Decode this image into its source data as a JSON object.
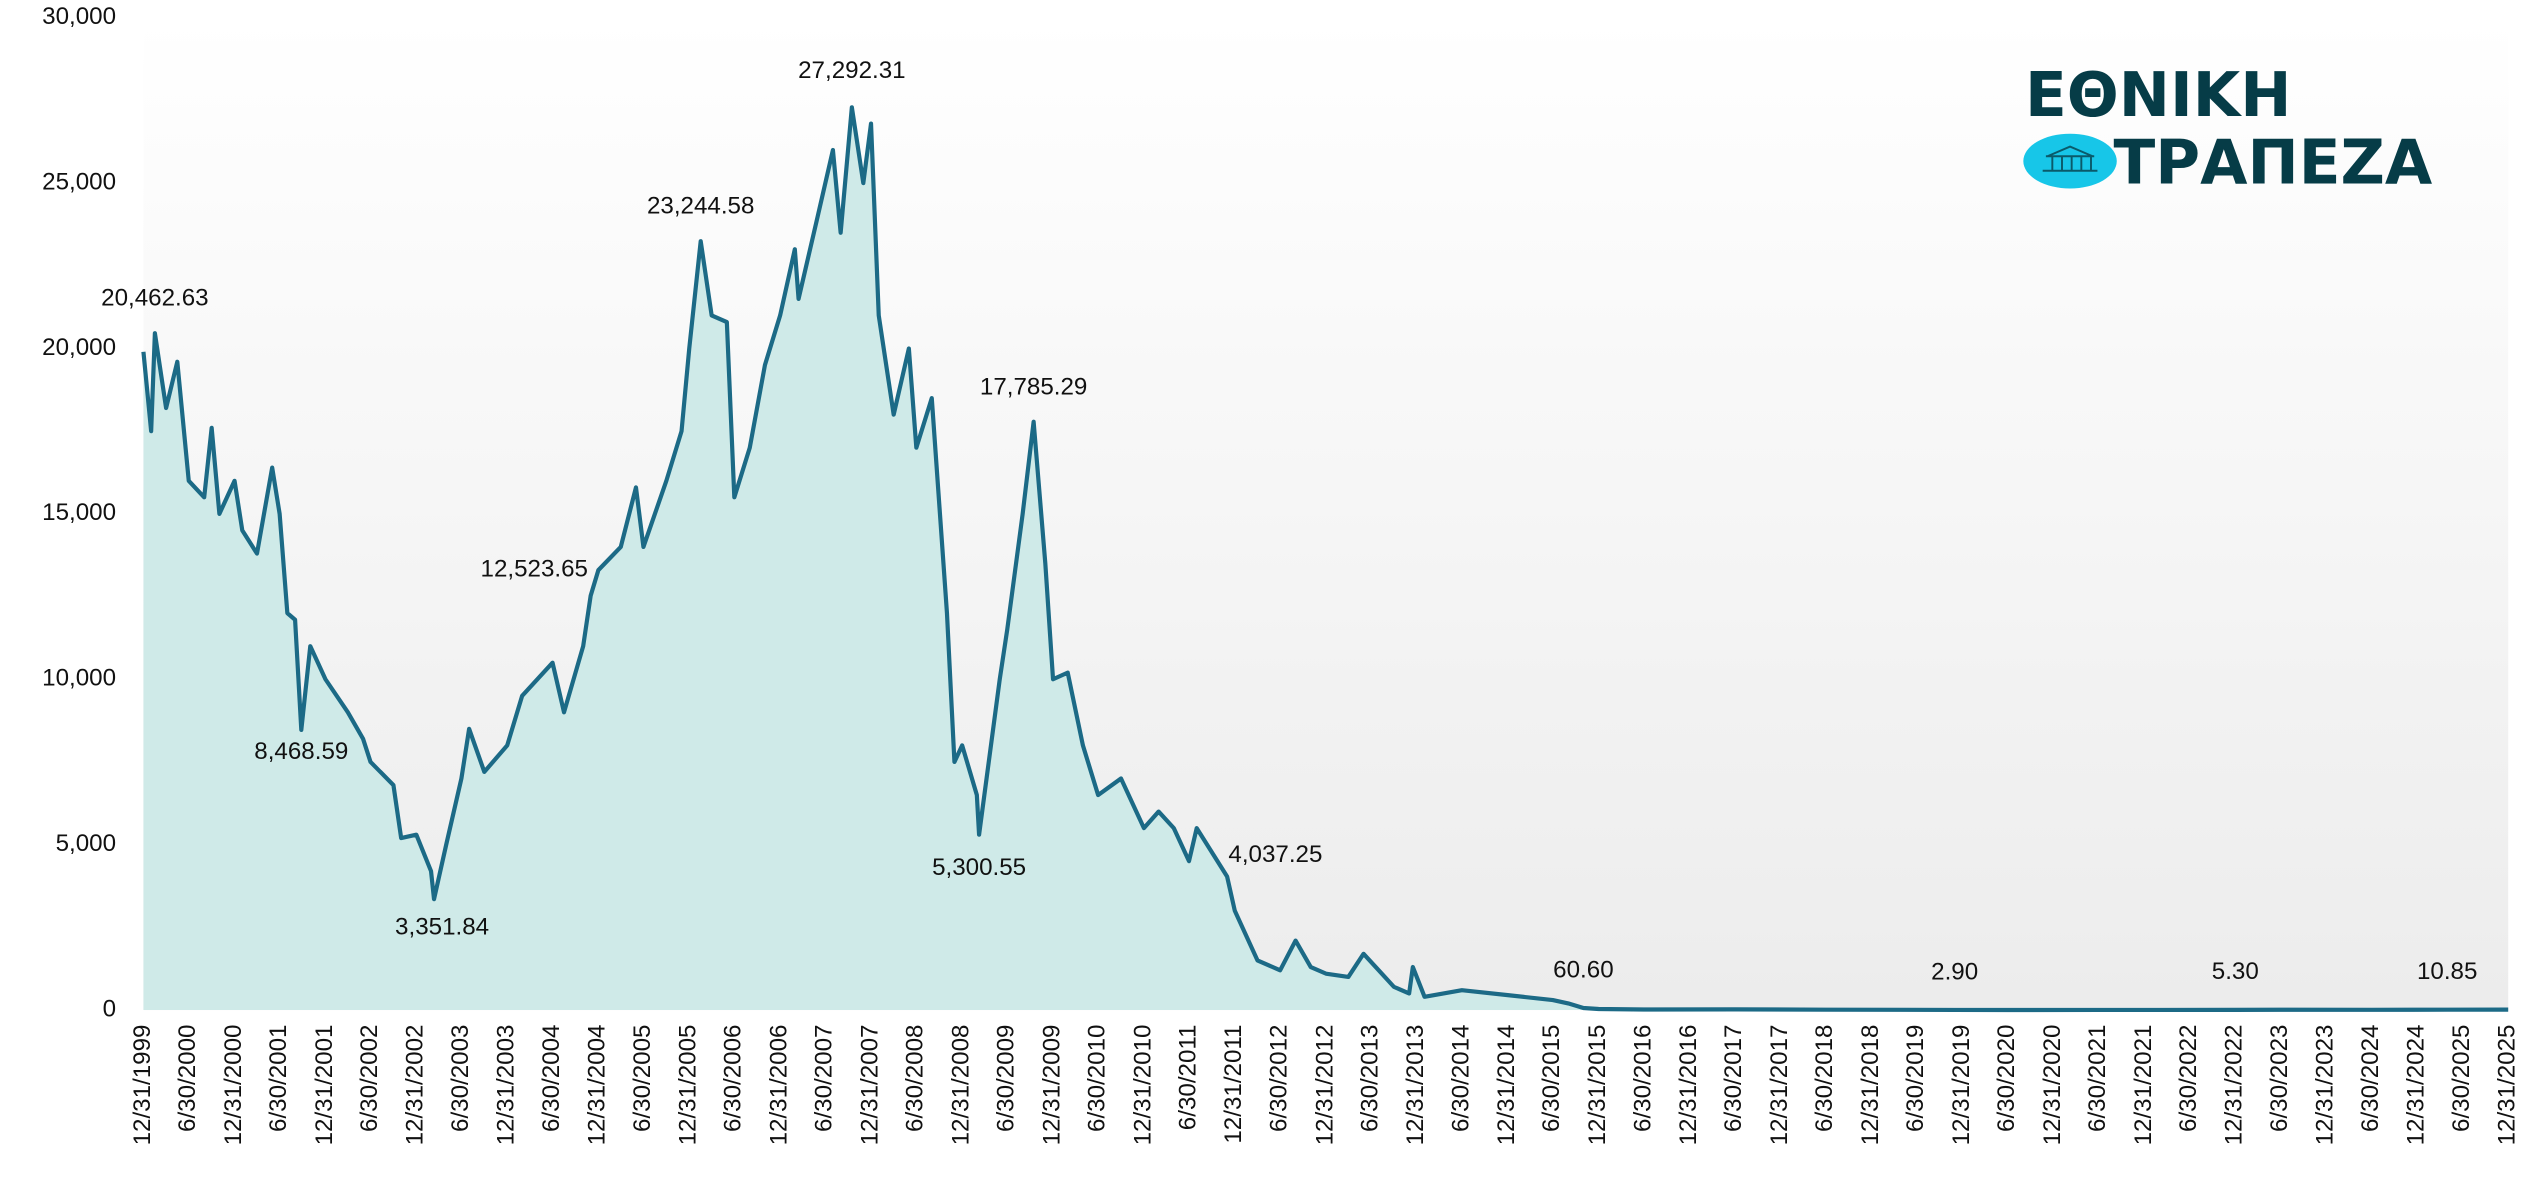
{
  "chart_data": {
    "type": "line",
    "area": true,
    "xlim": [
      "12/31/1999",
      "12/31/2025"
    ],
    "ylim": [
      0,
      30000
    ],
    "yticks": [
      0,
      {
        "value": 5000,
        "label": "5,000"
      },
      {
        "value": 10000,
        "label": "10,000"
      },
      {
        "value": 15000,
        "label": "15,000"
      },
      {
        "value": 20000,
        "label": "20,000"
      },
      {
        "value": 25000,
        "label": "25,000"
      },
      {
        "value": 30000,
        "label": "30,000"
      }
    ],
    "xticks": [
      "12/31/1999",
      "6/30/2000",
      "12/31/2000",
      "6/30/2001",
      "12/31/2001",
      "6/30/2002",
      "12/31/2002",
      "6/30/2003",
      "12/31/2003",
      "6/30/2004",
      "12/31/2004",
      "6/30/2005",
      "12/31/2005",
      "6/30/2006",
      "12/31/2006",
      "6/30/2007",
      "12/31/2007",
      "6/30/2008",
      "12/31/2008",
      "6/30/2009",
      "12/31/2009",
      "6/30/2010",
      "12/31/2010",
      "6/30/2011",
      "12/31/2011",
      "6/30/2012",
      "12/31/2012",
      "6/30/2013",
      "12/31/2013",
      "6/30/2014",
      "12/31/2014",
      "6/30/2015",
      "12/31/2015",
      "6/30/2016",
      "12/31/2016",
      "6/30/2017",
      "12/31/2017",
      "6/30/2018",
      "12/31/2018",
      "6/30/2019",
      "12/31/2019",
      "6/30/2020",
      "12/31/2020",
      "6/30/2021",
      "12/31/2021",
      "6/30/2022",
      "12/31/2022",
      "6/30/2023",
      "12/31/2023",
      "6/30/2024",
      "12/31/2024",
      "6/30/2025",
      "12/31/2025"
    ],
    "x": [
      "12/31/1999",
      "1/31/2000",
      "2/15/2000",
      "3/31/2000",
      "5/15/2000",
      "6/30/2000",
      "8/31/2000",
      "9/30/2000",
      "10/31/2000",
      "12/31/2000",
      "1/31/2001",
      "3/31/2001",
      "5/31/2001",
      "6/30/2001",
      "7/31/2001",
      "8/31/2001",
      "9/25/2001",
      "10/31/2001",
      "12/31/2001",
      "3/31/2002",
      "5/31/2002",
      "6/30/2002",
      "9/30/2002",
      "10/31/2002",
      "12/31/2002",
      "2/28/2003",
      "3/12/2003",
      "4/30/2003",
      "6/30/2003",
      "7/31/2003",
      "9/30/2003",
      "12/31/2003",
      "2/29/2004",
      "6/30/2004",
      "8/15/2004",
      "10/31/2004",
      "11/30/2004",
      "12/31/2004",
      "3/31/2005",
      "5/31/2005",
      "6/30/2005",
      "9/30/2005",
      "11/30/2005",
      "12/31/2005",
      "2/15/2006",
      "3/31/2006",
      "5/31/2006",
      "6/30/2006",
      "8/31/2006",
      "10/31/2006",
      "12/31/2006",
      "2/28/2007",
      "3/15/2007",
      "5/31/2007",
      "7/31/2007",
      "8/31/2007",
      "10/15/2007",
      "11/30/2007",
      "12/31/2007",
      "1/31/2008",
      "3/31/2008",
      "5/31/2008",
      "6/30/2008",
      "8/31/2008",
      "10/31/2008",
      "11/30/2008",
      "12/31/2008",
      "2/28/2009",
      "3/9/2009",
      "5/31/2009",
      "6/30/2009",
      "8/31/2009",
      "10/14/2009",
      "11/30/2009",
      "12/31/2009",
      "2/28/2010",
      "4/30/2010",
      "6/30/2010",
      "9/30/2010",
      "12/31/2010",
      "2/28/2011",
      "4/30/2011",
      "6/30/2011",
      "7/31/2011",
      "11/30/2011",
      "12/31/2011",
      "3/31/2012",
      "6/30/2012",
      "8/31/2012",
      "10/31/2012",
      "12/31/2012",
      "3/31/2013",
      "5/31/2013",
      "7/31/2013",
      "9/30/2013",
      "11/30/2013",
      "12/15/2013",
      "1/31/2014",
      "6/30/2014",
      "12/31/2014",
      "6/30/2015",
      "8/31/2015",
      "10/31/2015",
      "12/31/2015",
      "6/30/2016",
      "6/30/2017",
      "6/30/2018",
      "11/30/2019",
      "6/30/2020",
      "6/30/2021",
      "12/31/2022",
      "6/30/2023",
      "6/30/2024",
      "4/30/2025",
      "12/31/2025"
    ],
    "series": [
      {
        "color": "#1c6a86",
        "values": [
          19900,
          17500,
          20462.63,
          18200,
          19600,
          16000,
          15500,
          17600,
          15000,
          16000,
          14500,
          13800,
          16400,
          15000,
          12000,
          11800,
          8468.59,
          11000,
          10000,
          9000,
          8200,
          7500,
          6800,
          5200,
          5300,
          4200,
          3351.84,
          5000,
          7000,
          8500,
          7200,
          8000,
          9500,
          10500,
          9000,
          11000,
          12523.65,
          13300,
          14000,
          15800,
          14000,
          16000,
          17500,
          20000,
          23244.58,
          21000,
          20800,
          15500,
          17000,
          19500,
          21000,
          23000,
          21500,
          24000,
          26000,
          23500,
          27292.31,
          25000,
          26800,
          21000,
          18000,
          20000,
          17000,
          18500,
          12000,
          7500,
          8000,
          6500,
          5300.55,
          10000,
          11500,
          15000,
          17785.29,
          13500,
          10000,
          10200,
          8000,
          6500,
          7000,
          5500,
          6000,
          5500,
          4500,
          5500,
          4037.25,
          3000,
          1500,
          1200,
          2100,
          1300,
          1100,
          1000,
          1700,
          1200,
          700,
          500,
          1300,
          400,
          600,
          450,
          300,
          200,
          60.6,
          30,
          15,
          20,
          10,
          2.9,
          1.5,
          2.0,
          5.3,
          8,
          7,
          10.85,
          12
        ],
        "value_labels": [
          null,
          null,
          "20,462.63",
          null,
          null,
          null,
          null,
          null,
          null,
          null,
          null,
          null,
          null,
          null,
          null,
          null,
          "8,468.59",
          null,
          null,
          null,
          null,
          null,
          null,
          null,
          null,
          null,
          "3,351.84",
          null,
          null,
          null,
          null,
          null,
          null,
          null,
          null,
          null,
          "12,523.65",
          null,
          null,
          null,
          null,
          null,
          null,
          null,
          "23,244.58",
          null,
          null,
          null,
          null,
          null,
          null,
          null,
          null,
          null,
          null,
          null,
          "27,292.31",
          null,
          null,
          null,
          null,
          null,
          null,
          null,
          null,
          null,
          null,
          null,
          "5,300.55",
          null,
          null,
          null,
          "17,785.29",
          null,
          null,
          null,
          null,
          null,
          null,
          null,
          null,
          null,
          null,
          null,
          "4,037.25",
          null,
          null,
          null,
          null,
          null,
          null,
          null,
          null,
          null,
          null,
          null,
          null,
          null,
          null,
          null,
          null,
          null,
          "60.60",
          null,
          null,
          null,
          null,
          "2.90",
          null,
          null,
          "5.30",
          null,
          null,
          "10.85",
          null
        ]
      }
    ]
  },
  "logo": {
    "line1": "ΕΘΝΙΚΗ",
    "line2": "ΤΡΑΠΕΖΑ"
  }
}
